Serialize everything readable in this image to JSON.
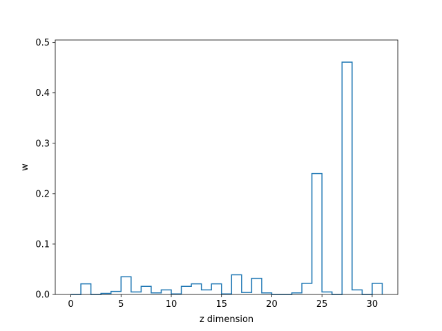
{
  "chart_data": {
    "type": "step",
    "xlabel": "z dimension",
    "ylabel": "w",
    "xlim": [
      -1.55,
      32.55
    ],
    "ylim": [
      0,
      0.505
    ],
    "xticks": [
      0,
      5,
      10,
      15,
      20,
      25,
      30
    ],
    "yticks": [
      0.0,
      0.1,
      0.2,
      0.3,
      0.4,
      0.5
    ],
    "xtick_labels": [
      "0",
      "5",
      "10",
      "15",
      "20",
      "25",
      "30"
    ],
    "ytick_labels": [
      "0.0",
      "0.1",
      "0.2",
      "0.3",
      "0.4",
      "0.5"
    ],
    "grid": false,
    "line_color": "#1f77b4",
    "edges": [
      0,
      1,
      2,
      3,
      4,
      5,
      6,
      7,
      8,
      9,
      10,
      11,
      12,
      13,
      14,
      15,
      16,
      17,
      18,
      19,
      20,
      21,
      22,
      23,
      24,
      25,
      26,
      27,
      28,
      29,
      30,
      31
    ],
    "values": [
      0.0,
      0.021,
      0.0,
      0.002,
      0.006,
      0.035,
      0.005,
      0.016,
      0.003,
      0.009,
      0.001,
      0.016,
      0.021,
      0.009,
      0.021,
      0.001,
      0.039,
      0.004,
      0.032,
      0.003,
      0.0,
      0.0,
      0.003,
      0.022,
      0.24,
      0.005,
      0.0,
      0.461,
      0.009,
      0.0,
      0.022
    ]
  }
}
